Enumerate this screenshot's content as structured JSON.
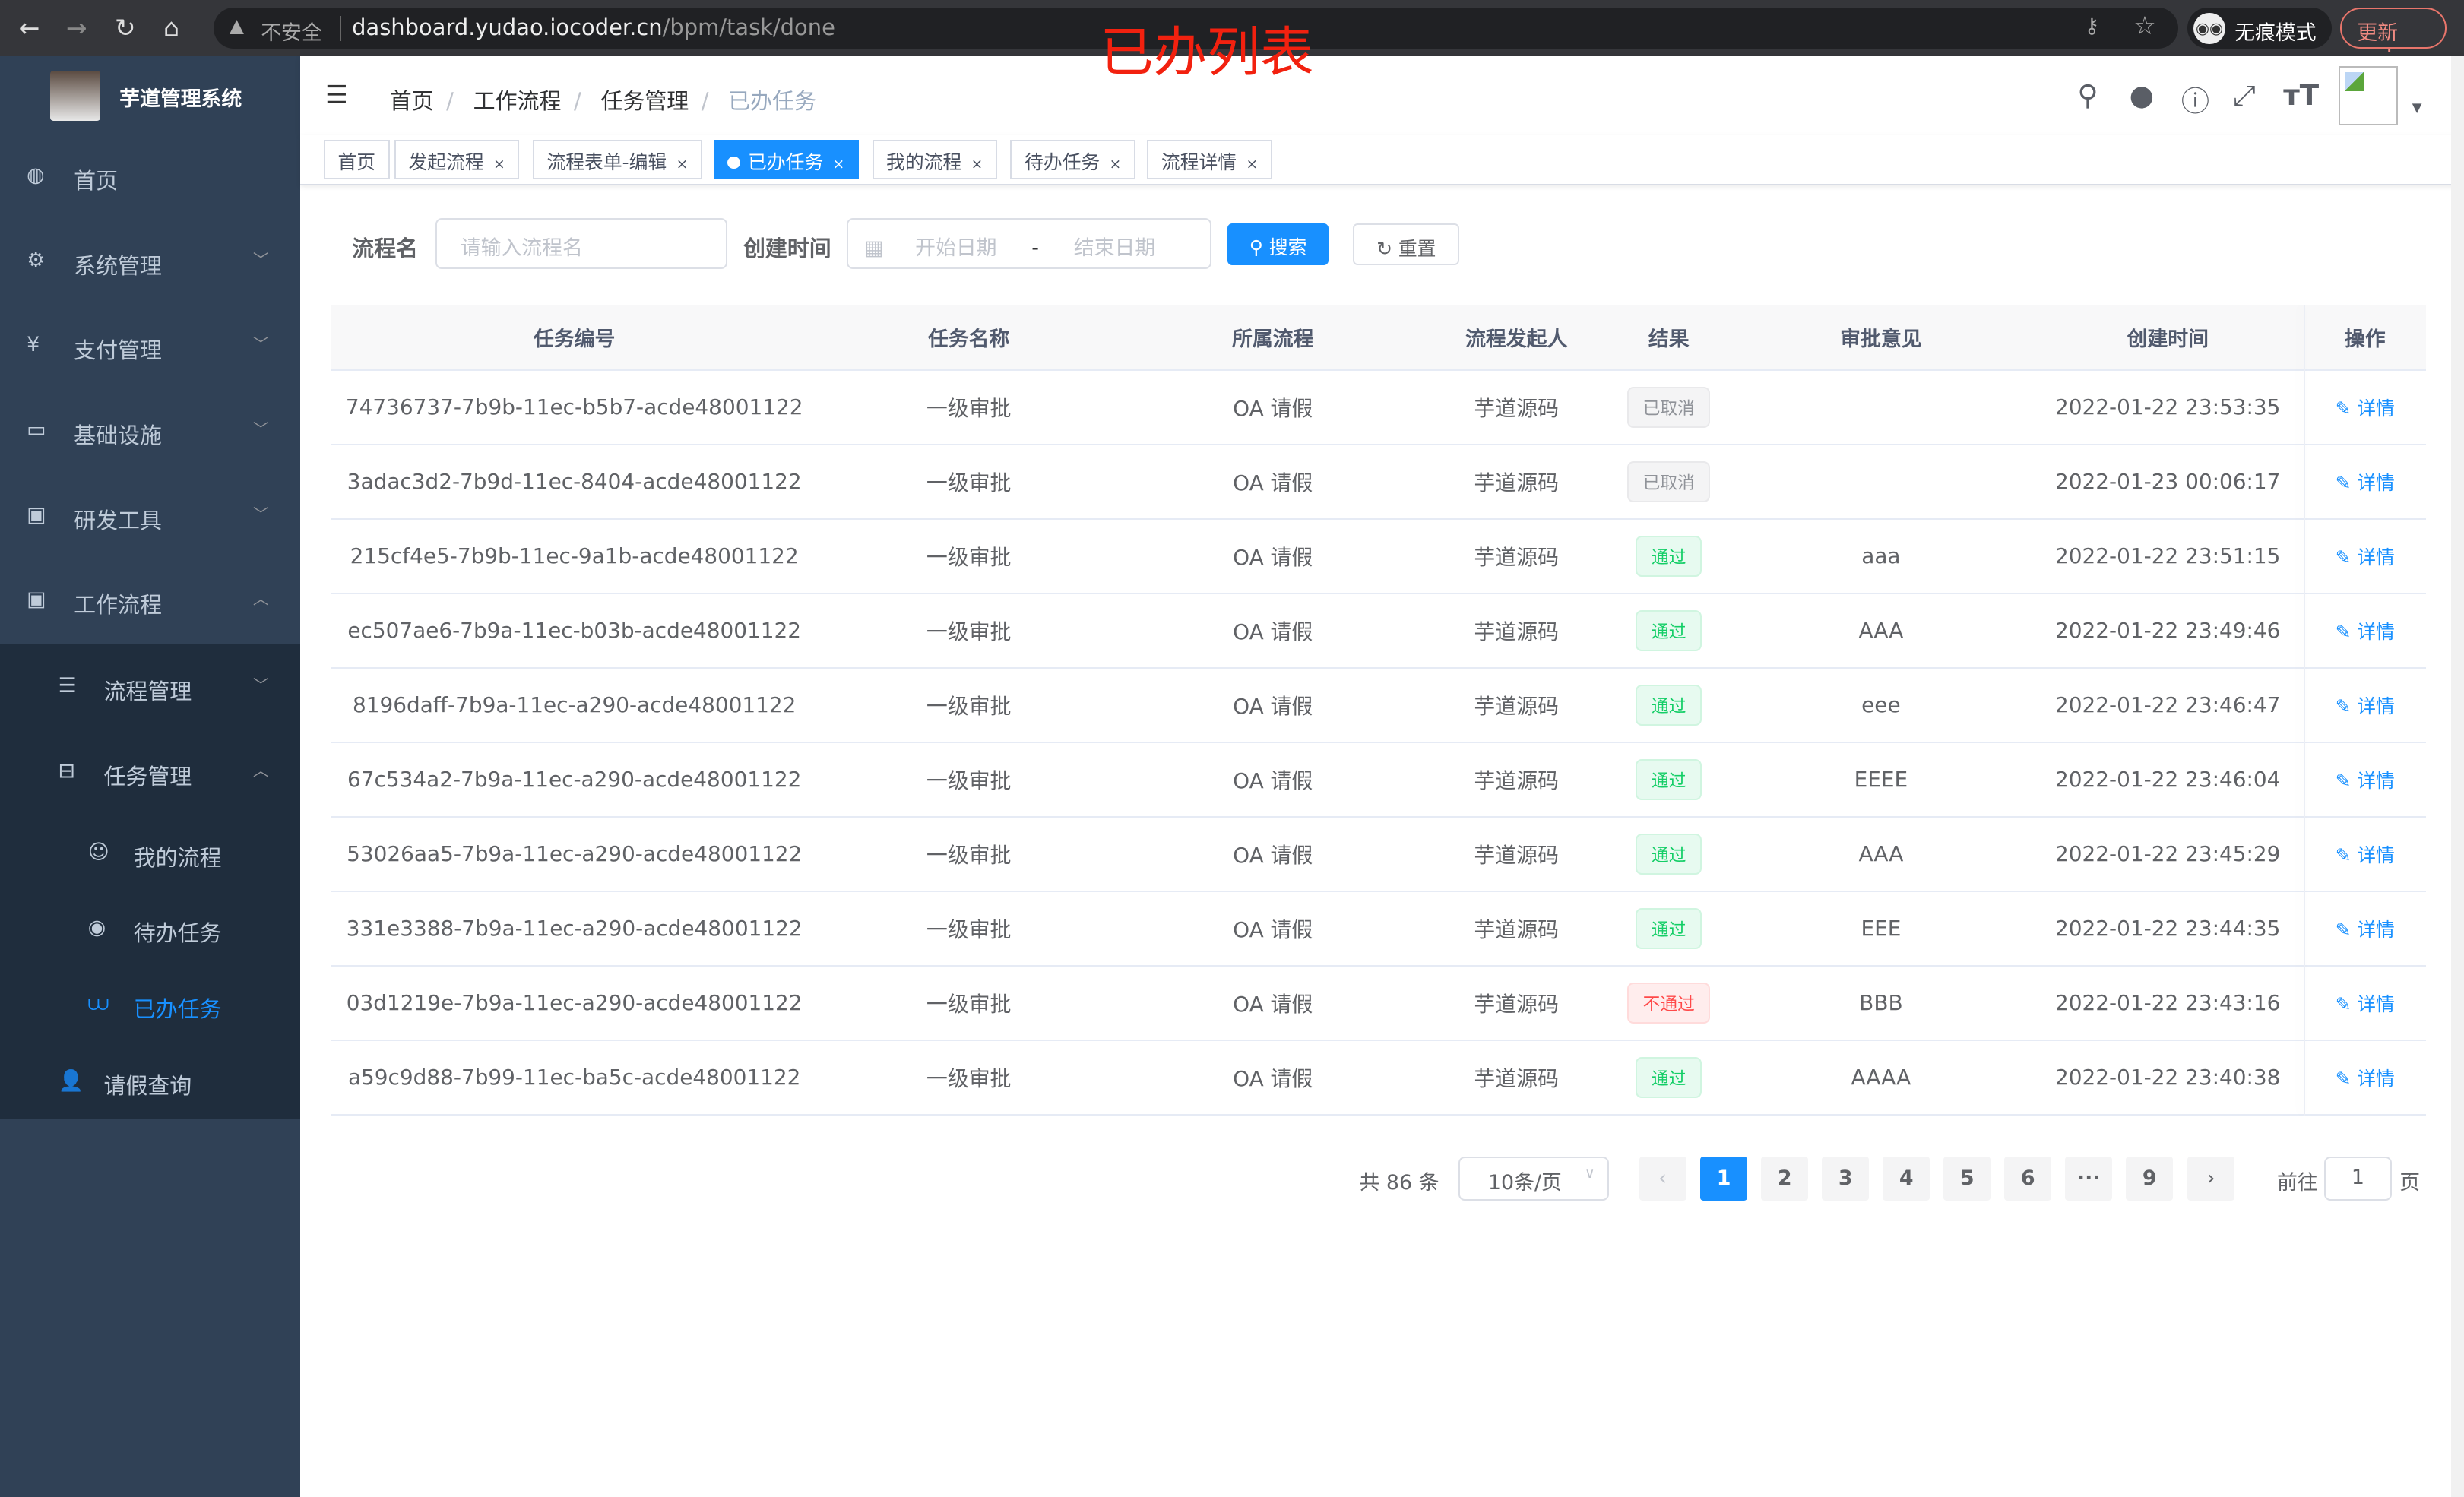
{
  "browser": {
    "insecure": "不安全",
    "url_host": "dashboard.yudao.iocoder.cn",
    "url_path": "/bpm/task/done",
    "incognito": "无痕模式",
    "update": "更新"
  },
  "annotation": "已办列表",
  "sidebar": {
    "brand": "芋道管理系统",
    "items": [
      {
        "label": "首页",
        "icon": "dashboard-icon"
      },
      {
        "label": "系统管理",
        "icon": "gear-icon"
      },
      {
        "label": "支付管理",
        "icon": "yen-icon"
      },
      {
        "label": "基础设施",
        "icon": "monitor-icon"
      },
      {
        "label": "研发工具",
        "icon": "toolbox-icon"
      },
      {
        "label": "工作流程",
        "icon": "toolbox-icon"
      },
      {
        "label": "流程管理",
        "icon": "list-icon"
      },
      {
        "label": "任务管理",
        "icon": "tree-icon"
      },
      {
        "label": "我的流程",
        "icon": "people-icon"
      },
      {
        "label": "待办任务",
        "icon": "eye-icon"
      },
      {
        "label": "已办任务",
        "icon": "done-icon"
      },
      {
        "label": "请假查询",
        "icon": "user-icon"
      }
    ]
  },
  "breadcrumb": [
    "首页",
    "工作流程",
    "任务管理",
    "已办任务"
  ],
  "tags": [
    {
      "label": "首页"
    },
    {
      "label": "发起流程"
    },
    {
      "label": "流程表单-编辑"
    },
    {
      "label": "已办任务",
      "active": true
    },
    {
      "label": "我的流程"
    },
    {
      "label": "待办任务"
    },
    {
      "label": "流程详情"
    }
  ],
  "filters": {
    "name_label": "流程名",
    "name_placeholder": "请输入流程名",
    "time_label": "创建时间",
    "start_placeholder": "开始日期",
    "sep": "-",
    "end_placeholder": "结束日期",
    "search": "搜索",
    "reset": "重置"
  },
  "table": {
    "headers": [
      "任务编号",
      "任务名称",
      "所属流程",
      "流程发起人",
      "结果",
      "审批意见",
      "创建时间",
      "操作"
    ],
    "action": "详情",
    "rows": [
      [
        "74736737-7b9b-11ec-b5b7-acde48001122",
        "一级审批",
        "OA 请假",
        "芋道源码",
        "已取消",
        "",
        "2022-01-22 23:53:35"
      ],
      [
        "3adac3d2-7b9d-11ec-8404-acde48001122",
        "一级审批",
        "OA 请假",
        "芋道源码",
        "已取消",
        "",
        "2022-01-23 00:06:17"
      ],
      [
        "215cf4e5-7b9b-11ec-9a1b-acde48001122",
        "一级审批",
        "OA 请假",
        "芋道源码",
        "通过",
        "aaa",
        "2022-01-22 23:51:15"
      ],
      [
        "ec507ae6-7b9a-11ec-b03b-acde48001122",
        "一级审批",
        "OA 请假",
        "芋道源码",
        "通过",
        "AAA",
        "2022-01-22 23:49:46"
      ],
      [
        "8196daff-7b9a-11ec-a290-acde48001122",
        "一级审批",
        "OA 请假",
        "芋道源码",
        "通过",
        "eee",
        "2022-01-22 23:46:47"
      ],
      [
        "67c534a2-7b9a-11ec-a290-acde48001122",
        "一级审批",
        "OA 请假",
        "芋道源码",
        "通过",
        "EEEE",
        "2022-01-22 23:46:04"
      ],
      [
        "53026aa5-7b9a-11ec-a290-acde48001122",
        "一级审批",
        "OA 请假",
        "芋道源码",
        "通过",
        "AAA",
        "2022-01-22 23:45:29"
      ],
      [
        "331e3388-7b9a-11ec-a290-acde48001122",
        "一级审批",
        "OA 请假",
        "芋道源码",
        "通过",
        "EEE",
        "2022-01-22 23:44:35"
      ],
      [
        "03d1219e-7b9a-11ec-a290-acde48001122",
        "一级审批",
        "OA 请假",
        "芋道源码",
        "不通过",
        "BBB",
        "2022-01-22 23:43:16"
      ],
      [
        "a59c9d88-7b99-11ec-ba5c-acde48001122",
        "一级审批",
        "OA 请假",
        "芋道源码",
        "通过",
        "AAAA",
        "2022-01-22 23:40:38"
      ]
    ]
  },
  "pagination": {
    "total": "共 86 条",
    "page_size": "10条/页",
    "pages": [
      "1",
      "2",
      "3",
      "4",
      "5",
      "6",
      "···",
      "9"
    ],
    "current": "1",
    "goto_label": "前往",
    "goto_value": "1",
    "page_suffix": "页"
  },
  "colors": {
    "primary": "#1890ff",
    "sidebar": "#304156",
    "submenu": "#1f2d3d",
    "pass": "#13ce66",
    "fail": "#ff4949",
    "cancel": "#909399"
  }
}
